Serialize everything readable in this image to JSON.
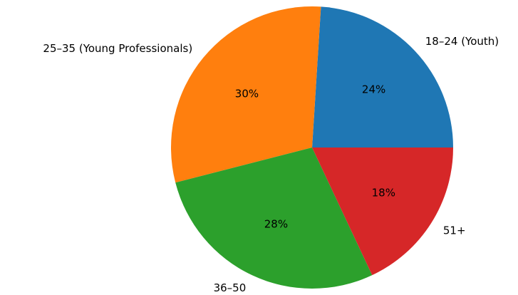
{
  "chart_data": {
    "type": "pie",
    "title": "",
    "start_angle_deg": 0,
    "direction": "counterclockwise",
    "slices": [
      {
        "label": "18–24 (Youth)",
        "value": 24,
        "pct_label": "24%",
        "color": "#1f77b4"
      },
      {
        "label": "25–35 (Young Professionals)",
        "value": 30,
        "pct_label": "30%",
        "color": "#ff7f0e"
      },
      {
        "label": "36–50",
        "value": 28,
        "pct_label": "28%",
        "color": "#2ca02c"
      },
      {
        "label": "51+",
        "value": 18,
        "pct_label": "18%",
        "color": "#d62728"
      }
    ]
  }
}
